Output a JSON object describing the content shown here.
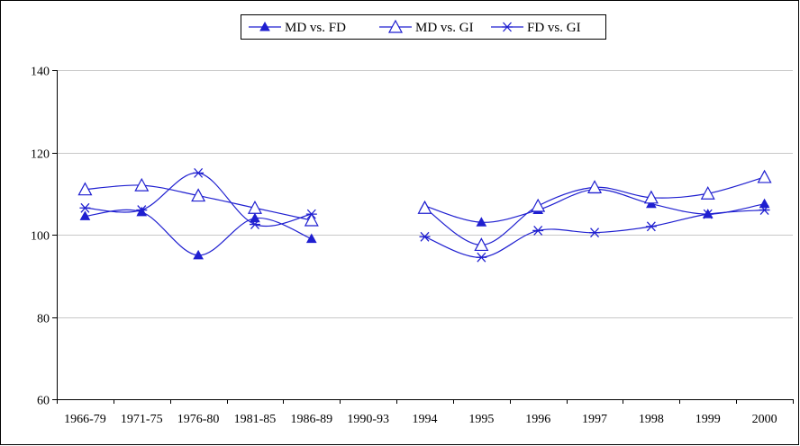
{
  "chart_data": {
    "type": "line",
    "title": "",
    "xlabel": "",
    "ylabel": "",
    "categories": [
      "1966-79",
      "1971-75",
      "1976-80",
      "1981-85",
      "1986-89",
      "1990-93",
      "1994",
      "1995",
      "1996",
      "1997",
      "1998",
      "1999",
      "2000"
    ],
    "ylim": [
      60,
      140
    ],
    "yticks": [
      60,
      80,
      100,
      120,
      140
    ],
    "grid": "horizontal",
    "legend_position": "top-center",
    "series": [
      {
        "name": "MD vs. FD",
        "marker": "filled-triangle",
        "color": "#1f1fd0",
        "values": [
          104.5,
          105.5,
          95,
          104,
          99,
          null,
          107,
          103,
          106,
          111,
          107.5,
          105,
          107.5
        ]
      },
      {
        "name": "MD vs. GI",
        "marker": "open-triangle",
        "color": "#1f1fd0",
        "values": [
          111,
          112,
          109.5,
          106.5,
          103.5,
          null,
          106.5,
          97.5,
          107,
          111.5,
          109,
          110,
          114
        ]
      },
      {
        "name": "FD vs. GI",
        "marker": "asterisk",
        "color": "#1f1fd0",
        "values": [
          106.5,
          106,
          115,
          102.5,
          105,
          null,
          99.5,
          94.5,
          101,
          100.5,
          102,
          105,
          106
        ]
      }
    ]
  }
}
